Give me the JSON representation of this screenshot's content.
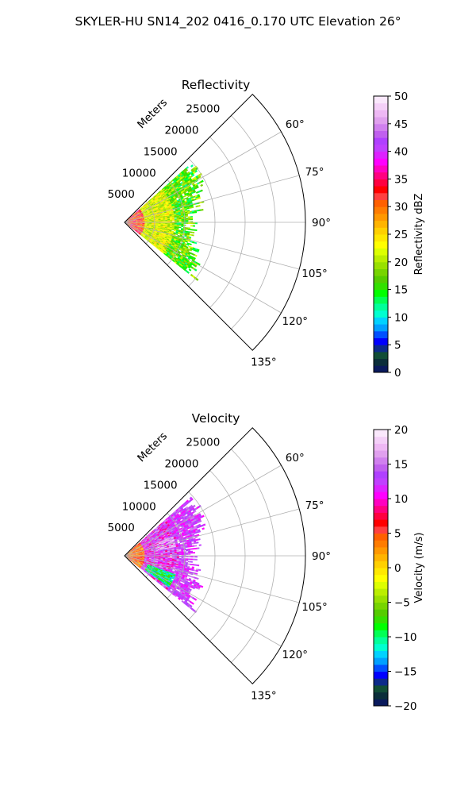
{
  "figure": {
    "title": "SKYLER-HU  SN14_202  0416_0.170 UTC Elevation 26°"
  },
  "chart_data": [
    {
      "type": "heatmap",
      "subtype": "polar-sector-radar",
      "title": "Reflectivity",
      "range_axis_label": "Meters",
      "range_ticks": [
        5000,
        10000,
        15000,
        20000,
        25000
      ],
      "range_tick_labels": [
        "5000",
        "10000",
        "15000",
        "20000",
        "25000"
      ],
      "range_lim": [
        0,
        30000
      ],
      "azimuth_lim": [
        45,
        135
      ],
      "azimuth_ticks": [
        60,
        75,
        90,
        105,
        120,
        135
      ],
      "azimuth_tick_labels": [
        "60°",
        "75°",
        "90°",
        "105°",
        "120°",
        "135°"
      ],
      "grid": true,
      "colorbar": {
        "label": "Reflectivity dBZ",
        "range": [
          0,
          50
        ],
        "ticks": [
          0,
          5,
          10,
          15,
          20,
          25,
          30,
          35,
          40,
          45,
          50
        ],
        "tick_labels": [
          "0",
          "5",
          "10",
          "15",
          "20",
          "25",
          "30",
          "35",
          "40",
          "45",
          "50"
        ],
        "colors": [
          "#0a1a5c",
          "#0b2e3a",
          "#114d36",
          "#0c2a8a",
          "#0000ff",
          "#0050ff",
          "#00a0ff",
          "#00d2ff",
          "#00ffd0",
          "#00ff9a",
          "#00ff55",
          "#00ff00",
          "#33e000",
          "#55cc00",
          "#77d400",
          "#99e000",
          "#bbee00",
          "#ddff00",
          "#ffff00",
          "#ffe800",
          "#ffd000",
          "#ffb400",
          "#ff9800",
          "#ff7c00",
          "#ff6000",
          "#ff4040",
          "#ff0000",
          "#ff0040",
          "#ff0080",
          "#ff00c0",
          "#ff00ff",
          "#dd22ff",
          "#c040ff",
          "#b040ff",
          "#c060ee",
          "#d080ee",
          "#e0a0ee",
          "#eeb8f4",
          "#f4d0f8",
          "#fae8fc"
        ]
      },
      "data_extent": {
        "description_note": "",
        "azimuth_range": [
          49,
          129
        ],
        "max_range_m": 14000
      },
      "dominant_values": [
        {
          "range_m": [
            0,
            3000
          ],
          "value": [
            25,
            38
          ]
        },
        {
          "range_m": [
            3000,
            8000
          ],
          "value": [
            18,
            26
          ]
        },
        {
          "range_m": [
            8000,
            14000
          ],
          "value": [
            12,
            22
          ]
        }
      ]
    },
    {
      "type": "heatmap",
      "subtype": "polar-sector-radar",
      "title": "Velocity",
      "range_axis_label": "Meters",
      "range_ticks": [
        5000,
        10000,
        15000,
        20000,
        25000
      ],
      "range_tick_labels": [
        "5000",
        "10000",
        "15000",
        "20000",
        "25000"
      ],
      "range_lim": [
        0,
        30000
      ],
      "azimuth_lim": [
        45,
        135
      ],
      "azimuth_ticks": [
        60,
        75,
        90,
        105,
        120,
        135
      ],
      "azimuth_tick_labels": [
        "60°",
        "75°",
        "90°",
        "105°",
        "120°",
        "135°"
      ],
      "grid": true,
      "colorbar": {
        "label": "Velocity (m/s)",
        "range": [
          -20,
          20
        ],
        "ticks": [
          -20,
          -15,
          -10,
          -5,
          0,
          5,
          10,
          15,
          20
        ],
        "tick_labels": [
          "−20",
          "−15",
          "−10",
          "−5",
          "0",
          "5",
          "10",
          "15",
          "20"
        ],
        "colors": [
          "#0a1a5c",
          "#0b2e3a",
          "#114d36",
          "#0c2a8a",
          "#0000ff",
          "#0050ff",
          "#00a0ff",
          "#00d2ff",
          "#00ffd0",
          "#00ff9a",
          "#00ff55",
          "#00ff00",
          "#33e000",
          "#55cc00",
          "#77d400",
          "#99e000",
          "#bbee00",
          "#ddff00",
          "#ffff00",
          "#ffe800",
          "#ffd000",
          "#ffb400",
          "#ff9800",
          "#ff7c00",
          "#ff6000",
          "#ff4040",
          "#ff0000",
          "#ff0040",
          "#ff0080",
          "#ff00c0",
          "#ff00ff",
          "#dd22ff",
          "#c040ff",
          "#b040ff",
          "#c060ee",
          "#d080ee",
          "#e0a0ee",
          "#eeb8f4",
          "#f4d0f8",
          "#fae8fc"
        ]
      },
      "data_extent": {
        "azimuth_range": [
          49,
          129
        ],
        "max_range_m": 14000
      },
      "dominant_values": [
        {
          "range_m": [
            0,
            3000
          ],
          "value": [
            0,
            8
          ]
        },
        {
          "range_m": [
            3000,
            9000
          ],
          "value": [
            8,
            17
          ]
        },
        {
          "range_m": [
            9000,
            14000
          ],
          "value": [
            10,
            16
          ]
        }
      ]
    }
  ]
}
